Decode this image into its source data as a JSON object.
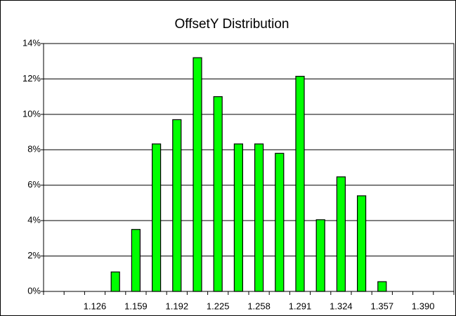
{
  "chart_data": {
    "type": "bar",
    "title": "OffsetY Distribution",
    "categories": [
      null,
      null,
      "1.126",
      null,
      "1.159",
      null,
      "1.192",
      null,
      "1.225",
      null,
      "1.258",
      null,
      "1.291",
      null,
      "1.324",
      null,
      "1.357",
      null,
      "1.390",
      null
    ],
    "values": [
      0,
      0,
      0,
      1.1,
      3.5,
      8.33,
      9.7,
      13.2,
      11.0,
      8.33,
      8.33,
      7.8,
      12.15,
      4.05,
      6.47,
      5.4,
      0.55,
      0,
      0,
      0
    ],
    "color": "#00ff00",
    "ylim": [
      0,
      14
    ],
    "yticks": [
      {
        "value": 0,
        "label": "0%"
      },
      {
        "value": 2,
        "label": "2%"
      },
      {
        "value": 4,
        "label": "4%"
      },
      {
        "value": 6,
        "label": "6%"
      },
      {
        "value": 8,
        "label": "8%"
      },
      {
        "value": 10,
        "label": "10%"
      },
      {
        "value": 12,
        "label": "12%"
      },
      {
        "value": 14,
        "label": "14%"
      }
    ],
    "grid": true
  }
}
